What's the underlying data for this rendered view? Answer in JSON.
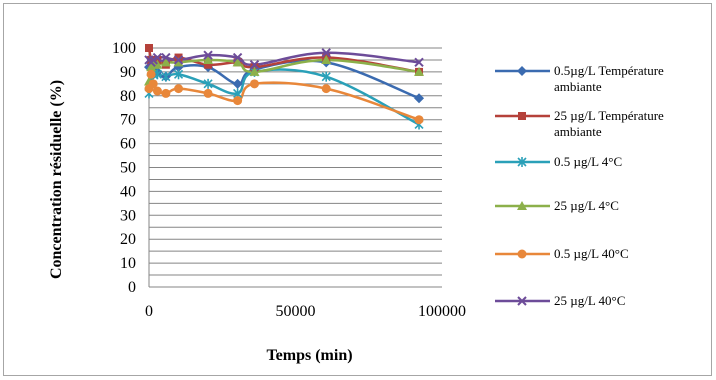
{
  "chart_data": {
    "type": "scatter",
    "title": "",
    "xlabel": "Temps (min)",
    "ylabel": "Concentration résiduelle (%)",
    "xlim": [
      0,
      100000
    ],
    "ylim": [
      0,
      100
    ],
    "x_ticks": [
      0,
      50000,
      100000
    ],
    "y_ticks": [
      0,
      5,
      10,
      15,
      20,
      25,
      30,
      35,
      40,
      45,
      50,
      55,
      60,
      65,
      70,
      75,
      80,
      85,
      90,
      95,
      100
    ],
    "grid": "horizontal",
    "legend_position": "right",
    "series": [
      {
        "name": "0.5µg/L Température ambiante",
        "color": "#3b6bb0",
        "marker": "diamond",
        "x": [
          0,
          720,
          1440,
          2880,
          5760,
          10080,
          20160,
          30240,
          36000,
          60480,
          92160
        ],
        "y": [
          92,
          94,
          93,
          90,
          88,
          92,
          92,
          85,
          91,
          94,
          79
        ]
      },
      {
        "name": "25 µg/L Température ambiante",
        "color": "#b5413a",
        "marker": "square",
        "x": [
          0,
          720,
          1440,
          2880,
          5760,
          10080,
          20160,
          30240,
          36000,
          60480,
          92160
        ],
        "y": [
          100,
          95,
          94,
          95,
          93,
          96,
          93,
          94,
          92,
          96,
          90
        ]
      },
      {
        "name": "0.5 µg/L 4°C",
        "color": "#2aa0b8",
        "marker": "asterisk",
        "x": [
          0,
          720,
          1440,
          2880,
          5760,
          10080,
          20160,
          30240,
          36000,
          60480,
          92160
        ],
        "y": [
          81,
          87,
          89,
          89,
          88,
          89,
          85,
          81,
          90,
          88,
          68
        ]
      },
      {
        "name": "25 µg/L 4°C",
        "color": "#8cb04a",
        "marker": "triangle",
        "x": [
          0,
          720,
          1440,
          2880,
          5760,
          10080,
          20160,
          30240,
          36000,
          60480,
          92160
        ],
        "y": [
          86,
          92,
          93,
          93,
          94,
          94,
          95,
          94,
          90,
          95,
          90
        ]
      },
      {
        "name": "0.5 µg/L 40°C",
        "color": "#e8873a",
        "marker": "circle",
        "x": [
          0,
          720,
          1440,
          2880,
          5760,
          10080,
          20160,
          30240,
          36000,
          60480,
          92160
        ],
        "y": [
          83,
          89,
          85,
          82,
          81,
          83,
          81,
          78,
          85,
          83,
          70
        ]
      },
      {
        "name": "25 µg/L 40°C",
        "color": "#6d4c99",
        "marker": "x",
        "x": [
          0,
          720,
          1440,
          2880,
          5760,
          10080,
          20160,
          30240,
          36000,
          60480,
          92160
        ],
        "y": [
          95,
          94,
          95,
          96,
          96,
          95,
          97,
          96,
          93,
          98,
          94
        ]
      }
    ]
  }
}
